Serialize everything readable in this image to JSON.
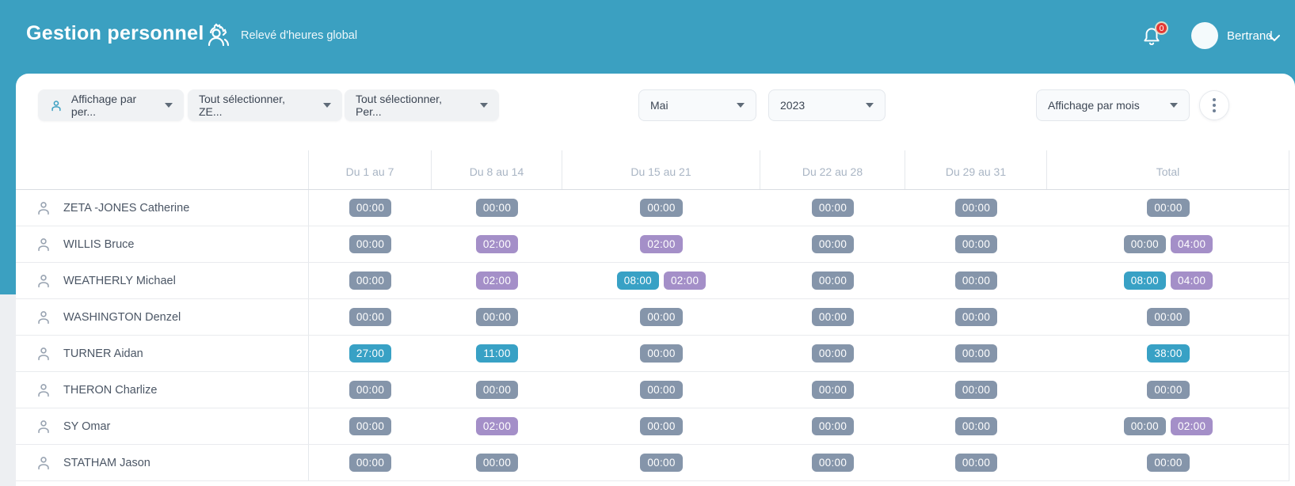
{
  "header": {
    "title": "Gestion personnel",
    "subtitle": "Relevé d'heures global",
    "notification_count": "0",
    "user_name": "Bertrand"
  },
  "filters": {
    "display_by_person": "Affichage par per...",
    "select_all_ze": "Tout sélectionner, ZE...",
    "select_all_per": "Tout sélectionner, Per...",
    "month": "Mai",
    "year": "2023",
    "display_mode": "Affichage par mois"
  },
  "colors": {
    "brand_teal": "#3ba0c1",
    "chip_gray": "#8595aa",
    "chip_purple": "#a48fc8",
    "chip_teal": "#38a1c5",
    "badge_red": "#e53935"
  },
  "table": {
    "columns": [
      "Du 1 au 7",
      "Du 8 au 14",
      "Du 15 au 21",
      "Du 22 au 28",
      "Du 29 au 31",
      "Total"
    ],
    "rows": [
      {
        "name": "ZETA -JONES Catherine",
        "cells": [
          [
            {
              "v": "00:00",
              "c": "gray"
            }
          ],
          [
            {
              "v": "00:00",
              "c": "gray"
            }
          ],
          [
            {
              "v": "00:00",
              "c": "gray"
            }
          ],
          [
            {
              "v": "00:00",
              "c": "gray"
            }
          ],
          [
            {
              "v": "00:00",
              "c": "gray"
            }
          ],
          [
            {
              "v": "00:00",
              "c": "gray"
            }
          ]
        ]
      },
      {
        "name": "WILLIS Bruce",
        "cells": [
          [
            {
              "v": "00:00",
              "c": "gray"
            }
          ],
          [
            {
              "v": "02:00",
              "c": "purple"
            }
          ],
          [
            {
              "v": "02:00",
              "c": "purple"
            }
          ],
          [
            {
              "v": "00:00",
              "c": "gray"
            }
          ],
          [
            {
              "v": "00:00",
              "c": "gray"
            }
          ],
          [
            {
              "v": "00:00",
              "c": "gray"
            },
            {
              "v": "04:00",
              "c": "purple"
            }
          ]
        ]
      },
      {
        "name": "WEATHERLY Michael",
        "cells": [
          [
            {
              "v": "00:00",
              "c": "gray"
            }
          ],
          [
            {
              "v": "02:00",
              "c": "purple"
            }
          ],
          [
            {
              "v": "08:00",
              "c": "teal"
            },
            {
              "v": "02:00",
              "c": "purple"
            }
          ],
          [
            {
              "v": "00:00",
              "c": "gray"
            }
          ],
          [
            {
              "v": "00:00",
              "c": "gray"
            }
          ],
          [
            {
              "v": "08:00",
              "c": "teal"
            },
            {
              "v": "04:00",
              "c": "purple"
            }
          ]
        ]
      },
      {
        "name": "WASHINGTON Denzel",
        "cells": [
          [
            {
              "v": "00:00",
              "c": "gray"
            }
          ],
          [
            {
              "v": "00:00",
              "c": "gray"
            }
          ],
          [
            {
              "v": "00:00",
              "c": "gray"
            }
          ],
          [
            {
              "v": "00:00",
              "c": "gray"
            }
          ],
          [
            {
              "v": "00:00",
              "c": "gray"
            }
          ],
          [
            {
              "v": "00:00",
              "c": "gray"
            }
          ]
        ]
      },
      {
        "name": "TURNER Aidan",
        "cells": [
          [
            {
              "v": "27:00",
              "c": "teal"
            }
          ],
          [
            {
              "v": "11:00",
              "c": "teal"
            }
          ],
          [
            {
              "v": "00:00",
              "c": "gray"
            }
          ],
          [
            {
              "v": "00:00",
              "c": "gray"
            }
          ],
          [
            {
              "v": "00:00",
              "c": "gray"
            }
          ],
          [
            {
              "v": "38:00",
              "c": "teal"
            }
          ]
        ]
      },
      {
        "name": "THERON Charlize",
        "cells": [
          [
            {
              "v": "00:00",
              "c": "gray"
            }
          ],
          [
            {
              "v": "00:00",
              "c": "gray"
            }
          ],
          [
            {
              "v": "00:00",
              "c": "gray"
            }
          ],
          [
            {
              "v": "00:00",
              "c": "gray"
            }
          ],
          [
            {
              "v": "00:00",
              "c": "gray"
            }
          ],
          [
            {
              "v": "00:00",
              "c": "gray"
            }
          ]
        ]
      },
      {
        "name": "SY Omar",
        "cells": [
          [
            {
              "v": "00:00",
              "c": "gray"
            }
          ],
          [
            {
              "v": "02:00",
              "c": "purple"
            }
          ],
          [
            {
              "v": "00:00",
              "c": "gray"
            }
          ],
          [
            {
              "v": "00:00",
              "c": "gray"
            }
          ],
          [
            {
              "v": "00:00",
              "c": "gray"
            }
          ],
          [
            {
              "v": "00:00",
              "c": "gray"
            },
            {
              "v": "02:00",
              "c": "purple"
            }
          ]
        ]
      },
      {
        "name": "STATHAM Jason",
        "cells": [
          [
            {
              "v": "00:00",
              "c": "gray"
            }
          ],
          [
            {
              "v": "00:00",
              "c": "gray"
            }
          ],
          [
            {
              "v": "00:00",
              "c": "gray"
            }
          ],
          [
            {
              "v": "00:00",
              "c": "gray"
            }
          ],
          [
            {
              "v": "00:00",
              "c": "gray"
            }
          ],
          [
            {
              "v": "00:00",
              "c": "gray"
            }
          ]
        ]
      }
    ]
  }
}
